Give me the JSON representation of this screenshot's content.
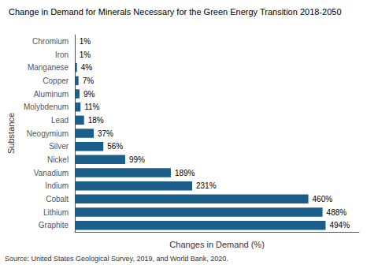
{
  "chart_data": {
    "type": "bar",
    "orientation": "horizontal",
    "title": "Change in Demand for Minerals Necessary for the Green Energy Transition 2018-2050",
    "xlabel": "Changes in Demand (%)",
    "ylabel": "Substance",
    "annotations": [
      "Source: United States Geological Survey, 2019, and World Bank, 2020."
    ],
    "categories": [
      "Graphite",
      "Lithium",
      "Cobalt",
      "Indium",
      "Vanadium",
      "Nickel",
      "Silver",
      "Neogymium",
      "Lead",
      "Molybdenum",
      "Aluminum",
      "Copper",
      "Manganese",
      "Iron",
      "Chromium"
    ],
    "values": [
      494,
      488,
      460,
      231,
      189,
      99,
      56,
      37,
      18,
      11,
      9,
      7,
      4,
      1,
      1
    ],
    "value_labels": [
      "494%",
      "488%",
      "460%",
      "231%",
      "189%",
      "99%",
      "56%",
      "37%",
      "18%",
      "11%",
      "9%",
      "7%",
      "4%",
      "1%",
      "1%"
    ],
    "data_labels": true,
    "color": "#1b5e8a",
    "xlim": [
      0,
      560
    ],
    "tick_labels": "y",
    "grid": false
  }
}
